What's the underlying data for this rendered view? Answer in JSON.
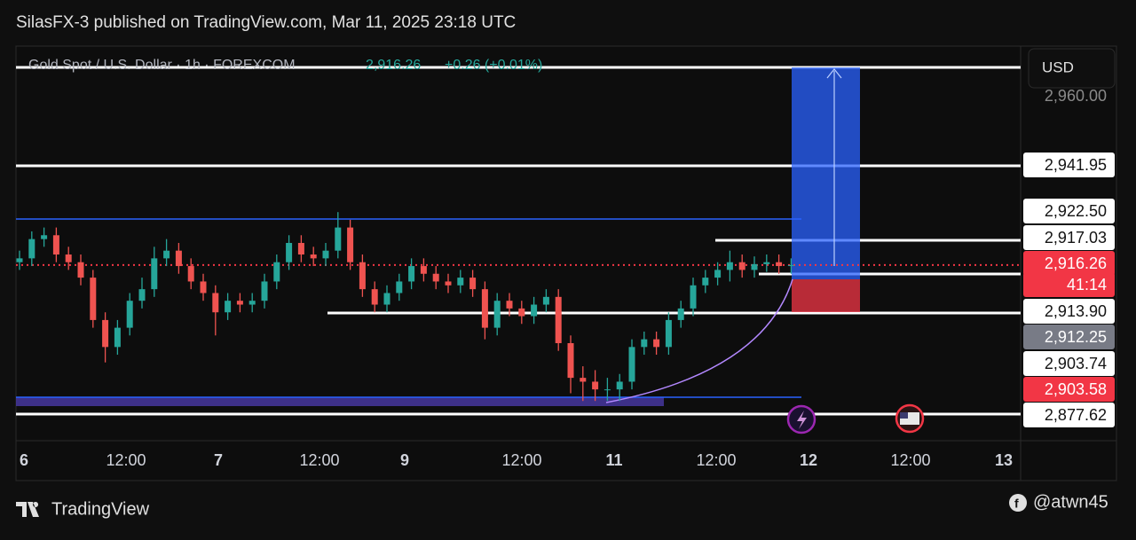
{
  "header": "SilasFX-3 published on TradingView.com, Mar 11, 2025 23:18 UTC",
  "legend": {
    "symbol": "Gold Spot / U.S. Dollar · 1h · FOREXCOM",
    "price": "2,916.26",
    "change": "+0.26 (+0.01%)"
  },
  "currency": "USD",
  "chart_data": {
    "type": "candlestick",
    "ylim": [
      2870,
      2971
    ],
    "up_color": "#26a69a",
    "down_color": "#ef5350",
    "current_price": 2916.26,
    "x_labels": [
      "6",
      "12:00",
      "7",
      "12:00",
      "9",
      "12:00",
      "11",
      "12:00",
      "12",
      "12:00",
      "13"
    ],
    "open": [
      2917,
      2918,
      2923,
      2924,
      2919,
      2917,
      2913,
      2902,
      2895,
      2900,
      2907,
      2910,
      2918,
      2920,
      2916,
      2912,
      2909,
      2904,
      2907,
      2906,
      2907,
      2912,
      2917,
      2922,
      2919,
      2918,
      2920,
      2926,
      2917,
      2910,
      2906,
      2909,
      2912,
      2916,
      2914,
      2912,
      2911,
      2913,
      2910,
      2900,
      2907,
      2905,
      2903,
      2906,
      2908,
      2896,
      2887,
      2886,
      2884,
      2884,
      2886,
      2895,
      2897,
      2895,
      2902,
      2905,
      2911,
      2913,
      2915,
      2917,
      2915,
      2916.5,
      2917,
      2916
    ],
    "high": [
      2920,
      2925,
      2926,
      2926,
      2921,
      2919,
      2915,
      2904,
      2902,
      2909,
      2913,
      2921,
      2923,
      2922,
      2918,
      2914,
      2911,
      2909,
      2909,
      2909,
      2914,
      2919,
      2924,
      2924,
      2921,
      2922,
      2930,
      2928,
      2919,
      2912,
      2911,
      2914,
      2918,
      2918,
      2916,
      2914,
      2915,
      2915,
      2912,
      2909,
      2909,
      2907,
      2908,
      2910,
      2910,
      2898,
      2890,
      2889,
      2887,
      2888,
      2897,
      2899,
      2899,
      2904,
      2907,
      2913,
      2915,
      2917,
      2920,
      2919,
      2918.5,
      2919,
      2919,
      2918
    ],
    "low": [
      2915,
      2916,
      2921,
      2917,
      2915,
      2911,
      2900,
      2891,
      2893,
      2898,
      2905,
      2908,
      2916,
      2914,
      2910,
      2907,
      2898,
      2902,
      2904,
      2904,
      2905,
      2910,
      2915,
      2917,
      2916,
      2916,
      2918,
      2915,
      2908,
      2904,
      2904,
      2907,
      2910,
      2912,
      2910,
      2909,
      2909,
      2908,
      2897,
      2898,
      2903,
      2901,
      2901,
      2904,
      2894,
      2883,
      2881,
      2881,
      2881,
      2881,
      2884,
      2893,
      2893,
      2893,
      2900,
      2903,
      2909,
      2911,
      2912,
      2913,
      2913,
      2914.5,
      2914,
      2914
    ],
    "close": [
      2918,
      2923,
      2924,
      2919,
      2917,
      2913,
      2902,
      2895,
      2900,
      2907,
      2910,
      2918,
      2920,
      2916,
      2912,
      2909,
      2904,
      2907,
      2906,
      2907,
      2912,
      2917,
      2922,
      2919,
      2918,
      2920,
      2926,
      2917,
      2910,
      2906,
      2909,
      2912,
      2916,
      2914,
      2912,
      2911,
      2913,
      2910,
      2900,
      2907,
      2905,
      2903,
      2906,
      2908,
      2896,
      2887,
      2886,
      2884,
      2884,
      2886,
      2895,
      2897,
      2895,
      2902,
      2905,
      2911,
      2913,
      2915,
      2917,
      2915,
      2916.5,
      2917,
      2916,
      2916.26
    ]
  },
  "price_labels": [
    {
      "text": "2,960.00",
      "bg": "none",
      "fg": "#8a8a8a"
    },
    {
      "text": "2,941.95",
      "bg": "#ffffff",
      "fg": "#131313"
    },
    {
      "text": "2,922.50",
      "bg": "#ffffff",
      "fg": "#131313"
    },
    {
      "text": "2,917.03",
      "bg": "#ffffff",
      "fg": "#131313"
    },
    {
      "text": "2,916.26",
      "bg": "#f23645",
      "fg": "#ffffff"
    },
    {
      "text": "41:14",
      "bg": "#f23645",
      "fg": "#ffffff"
    },
    {
      "text": "2,913.90",
      "bg": "#ffffff",
      "fg": "#131313"
    },
    {
      "text": "2,912.25",
      "bg": "#787b86",
      "fg": "#ffffff"
    },
    {
      "text": "2,903.74",
      "bg": "#ffffff",
      "fg": "#131313"
    },
    {
      "text": "2,903.58",
      "bg": "#f23645",
      "fg": "#ffffff"
    },
    {
      "text": "2,877.62",
      "bg": "#ffffff",
      "fg": "#131313"
    }
  ],
  "footer": {
    "brand": "TradingView",
    "handle": "@atwn45"
  }
}
